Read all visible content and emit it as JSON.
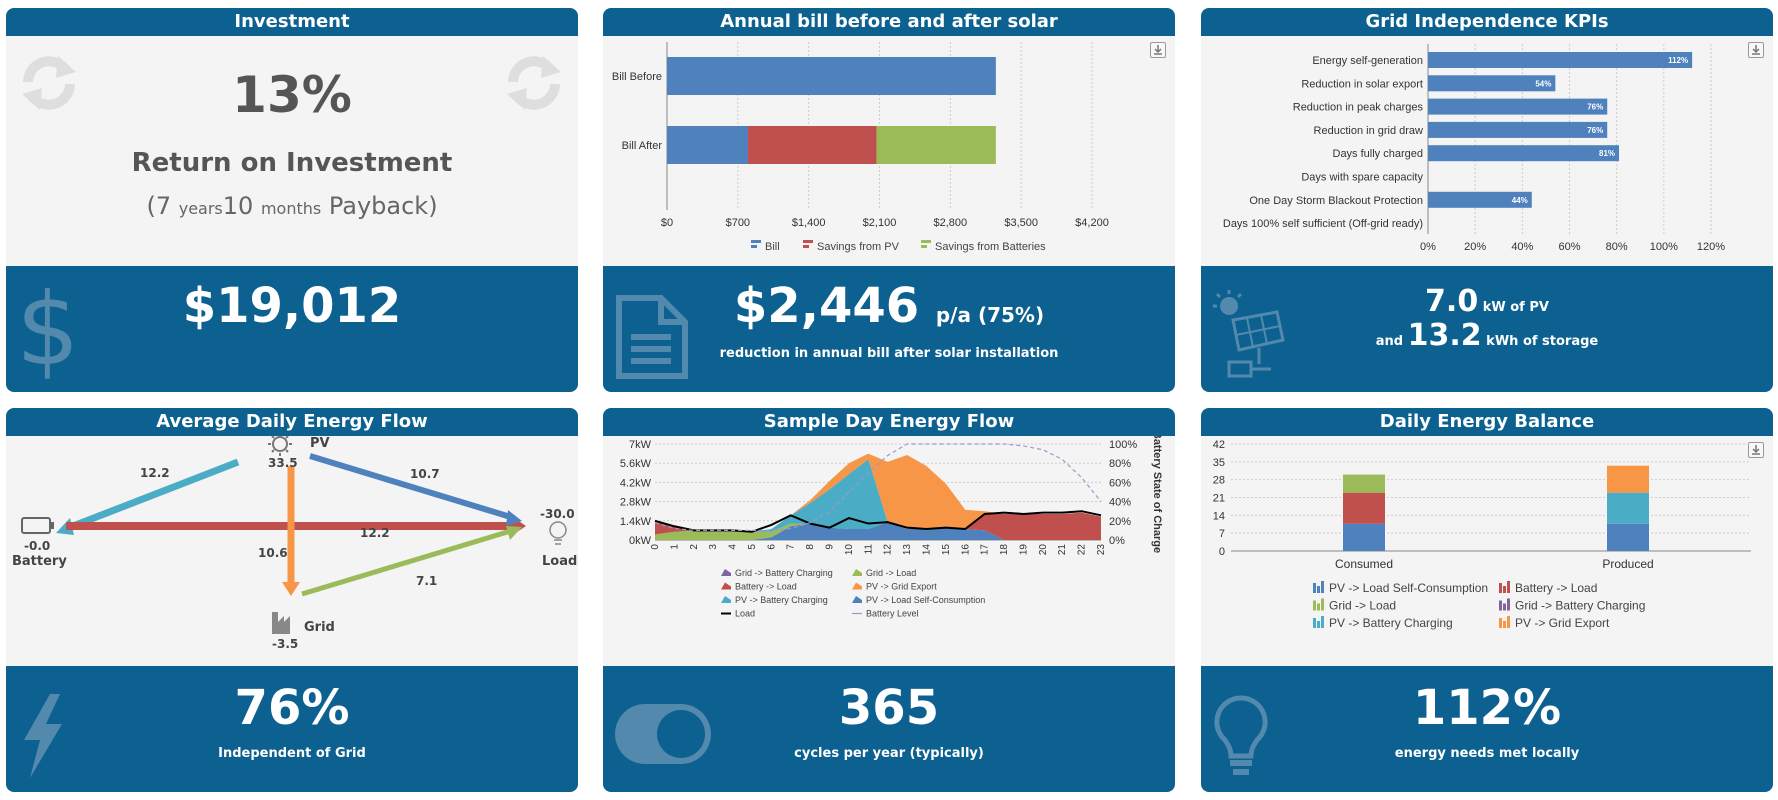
{
  "investment": {
    "title": "Investment",
    "roi_value": "13%",
    "roi_label": "Return on Investment",
    "payback_open": "(",
    "payback_years_num": "7",
    "payback_years_unit": "years",
    "payback_months_num": "10",
    "payback_months_unit": "months",
    "payback_word": "Payback)",
    "savings_value": "$19,012",
    "icons": [
      "refresh-icon",
      "dollar-icon"
    ]
  },
  "annual_bill": {
    "title": "Annual bill before and after solar",
    "savings_value": "$2,446",
    "savings_suffix": "p/a (75%)",
    "savings_caption": "reduction in annual bill after solar installation"
  },
  "grid_kpis": {
    "title": "Grid Independence KPIs",
    "pv_value": "7.0",
    "pv_unit": "kW of PV",
    "and_text": "and",
    "storage_value": "13.2",
    "storage_unit": "kWh of storage"
  },
  "energy_flow": {
    "title": "Average Daily Energy Flow",
    "pv_label": "PV",
    "pv_value": "33.5",
    "battery_label": "Battery",
    "battery_value": "-0.0",
    "load_label": "Load",
    "load_value": "-30.0",
    "grid_label": "Grid",
    "grid_value": "-3.5",
    "flow_pv_battery": "12.2",
    "flow_pv_load": "10.7",
    "flow_battery_load": "12.2",
    "flow_pv_grid": "10.6",
    "flow_grid_load": "7.1",
    "independence_value": "76%",
    "independence_caption": "Independent of Grid"
  },
  "sample_day": {
    "title": "Sample Day Energy Flow",
    "cycles_value": "365",
    "cycles_caption": "cycles per year (typically)"
  },
  "daily_balance": {
    "title": "Daily Energy Balance",
    "needs_value": "112%",
    "needs_caption": "energy needs met locally"
  },
  "chart_data": [
    {
      "type": "bar",
      "orientation": "horizontal",
      "stacked": true,
      "categories": [
        "Bill Before",
        "Bill After"
      ],
      "series": [
        {
          "name": "Bill",
          "color": "#4f81bd",
          "values": [
            3250,
            800
          ]
        },
        {
          "name": "Savings from PV",
          "color": "#c0504d",
          "values": [
            0,
            1270
          ]
        },
        {
          "name": "Savings from Batteries",
          "color": "#9bbb59",
          "values": [
            0,
            1180
          ]
        }
      ],
      "xlim": [
        0,
        4200
      ],
      "xticks": [
        "$0",
        "$700",
        "$1,400",
        "$2,100",
        "$2,800",
        "$3,500",
        "$4,200"
      ],
      "legend": "bottom"
    },
    {
      "type": "bar",
      "orientation": "horizontal",
      "categories": [
        "Energy self-generation",
        "Reduction in solar export",
        "Reduction in peak charges",
        "Reduction in grid draw",
        "Days fully charged",
        "Days with spare capacity",
        "One Day Storm Blackout Protection",
        "Days 100% self sufficient (Off-grid ready)"
      ],
      "values": [
        112,
        54,
        76,
        76,
        81,
        0,
        44,
        0
      ],
      "labels": [
        "112%",
        "54%",
        "76%",
        "76%",
        "81%",
        "",
        "44%",
        ""
      ],
      "xlim": [
        0,
        120
      ],
      "xticks": [
        "0%",
        "20%",
        "40%",
        "60%",
        "80%",
        "100%",
        "120%"
      ],
      "color": "#4f81bd"
    },
    {
      "type": "area",
      "stacked": true,
      "x": [
        0,
        1,
        2,
        3,
        4,
        5,
        6,
        7,
        8,
        9,
        10,
        11,
        12,
        13,
        14,
        15,
        16,
        17,
        18,
        19,
        20,
        21,
        22,
        23
      ],
      "ylim": [
        0,
        7
      ],
      "yticks": [
        "0kW",
        "1.4kW",
        "2.8kW",
        "4.2kW",
        "5.6kW",
        "7kW"
      ],
      "y2ticks": [
        "0%",
        "20%",
        "40%",
        "60%",
        "80%",
        "100%"
      ],
      "y2label": "Battery State of Charge",
      "series": [
        {
          "name": "Grid -> Battery Charging",
          "color": "#8064a2",
          "values": [
            0,
            0,
            0,
            0,
            0,
            0,
            0,
            0,
            0,
            0,
            0,
            0,
            0,
            0,
            0,
            0,
            0,
            0,
            0,
            0,
            0,
            0,
            0,
            0
          ]
        },
        {
          "name": "Grid -> Load",
          "color": "#9bbb59",
          "values": [
            0.4,
            0.6,
            0.7,
            0.7,
            0.7,
            0.6,
            0.4,
            0.2,
            0,
            0,
            0,
            0,
            0,
            0,
            0,
            0,
            0,
            0,
            0,
            0,
            0,
            0,
            0,
            0
          ]
        },
        {
          "name": "Battery -> Load",
          "color": "#c0504d",
          "values": [
            1.0,
            0.4,
            0,
            0,
            0,
            0,
            0,
            0,
            0,
            0,
            0,
            0,
            0,
            0,
            0,
            0,
            0,
            1.2,
            1.9,
            1.9,
            1.9,
            1.9,
            2.0,
            1.7
          ]
        },
        {
          "name": "PV -> Battery Charging",
          "color": "#4bacc6",
          "values": [
            0,
            0,
            0,
            0,
            0,
            0,
            0.2,
            0.6,
            1.5,
            2.8,
            4.0,
            5.1,
            0,
            0,
            0,
            0,
            0,
            0,
            0,
            0,
            0,
            0,
            0,
            0
          ]
        },
        {
          "name": "PV -> Grid Export",
          "color": "#f79646",
          "values": [
            0,
            0,
            0,
            0,
            0,
            0,
            0,
            0,
            0.2,
            0.6,
            0.8,
            0.4,
            4.4,
            5.4,
            4.6,
            3.2,
            1.4,
            0.2,
            0,
            0,
            0,
            0,
            0,
            0
          ]
        },
        {
          "name": "PV -> Load Self-Consumption",
          "color": "#4f81bd",
          "values": [
            0,
            0,
            0,
            0,
            0,
            0,
            0.2,
            1.0,
            1.2,
            0.9,
            0.8,
            0.8,
            1.3,
            0.8,
            0.8,
            0.9,
            0.8,
            0.7,
            0,
            0,
            0,
            0,
            0,
            0
          ]
        }
      ],
      "load": {
        "name": "Load",
        "color": "#000000",
        "values": [
          1.4,
          1.0,
          0.7,
          0.7,
          0.7,
          0.6,
          1.1,
          1.8,
          1.2,
          0.9,
          1.6,
          1.2,
          1.3,
          0.9,
          0.8,
          0.9,
          0.8,
          1.9,
          2.0,
          1.9,
          2.0,
          2.0,
          2.1,
          1.8
        ]
      },
      "battery_level": {
        "name": "Battery Level",
        "color": "#9999cc",
        "values": [
          18,
          12,
          10,
          10,
          10,
          10,
          10,
          12,
          18,
          30,
          50,
          70,
          88,
          100,
          100,
          100,
          100,
          100,
          100,
          98,
          94,
          84,
          65,
          40
        ]
      },
      "legend": "bottom"
    },
    {
      "type": "bar",
      "stacked": true,
      "categories": [
        "Consumed",
        "Produced"
      ],
      "ylim": [
        0,
        42
      ],
      "yticks": [
        "0",
        "7",
        "14",
        "21",
        "28",
        "35",
        "42"
      ],
      "series": [
        {
          "name": "PV -> Load Self-Consumption",
          "color": "#4f81bd",
          "values": [
            10.7,
            10.7
          ]
        },
        {
          "name": "Battery -> Load",
          "color": "#c0504d",
          "values": [
            12.2,
            0
          ]
        },
        {
          "name": "Grid -> Load",
          "color": "#9bbb59",
          "values": [
            7.1,
            0
          ]
        },
        {
          "name": "Grid -> Battery Charging",
          "color": "#8064a2",
          "values": [
            0,
            0
          ]
        },
        {
          "name": "PV -> Battery Charging",
          "color": "#4bacc6",
          "values": [
            0,
            12.2
          ]
        },
        {
          "name": "PV -> Grid Export",
          "color": "#f79646",
          "values": [
            0,
            10.6
          ]
        }
      ],
      "legend": "bottom"
    }
  ]
}
